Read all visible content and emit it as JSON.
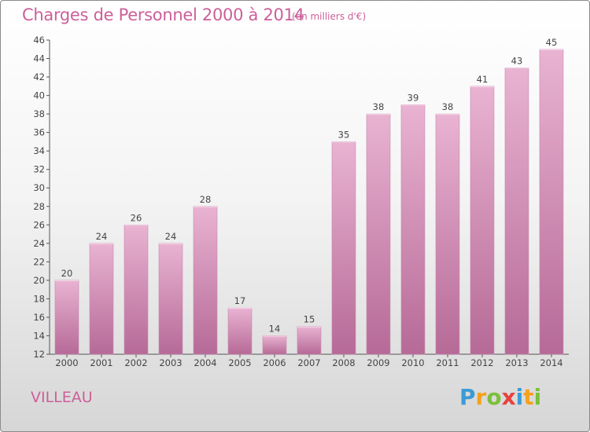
{
  "title": "Charges de Personnel 2000 à 2014",
  "subtitle": "(en milliers d'€)",
  "location": "VILLEAU",
  "logo": {
    "text": "Proxiti",
    "letters": [
      {
        "ch": "P",
        "color": "#3c9bd6"
      },
      {
        "ch": "r",
        "color": "#f4a11c"
      },
      {
        "ch": "o",
        "color": "#7cbf3a"
      },
      {
        "ch": "x",
        "color": "#e8413c"
      },
      {
        "ch": "i",
        "color": "#3c9bd6"
      },
      {
        "ch": "t",
        "color": "#f4a11c"
      },
      {
        "ch": "i",
        "color": "#7cbf3a"
      }
    ]
  },
  "colors": {
    "bar_light": "#e9b3d2",
    "bar_dark": "#b66a97",
    "accent": "#cc5f99"
  },
  "chart_data": {
    "type": "bar",
    "categories": [
      "2000",
      "2001",
      "2002",
      "2003",
      "2004",
      "2005",
      "2006",
      "2007",
      "2008",
      "2009",
      "2010",
      "2011",
      "2012",
      "2013",
      "2014"
    ],
    "values": [
      20,
      24,
      26,
      24,
      28,
      17,
      14,
      15,
      35,
      38,
      39,
      38,
      41,
      43,
      45
    ],
    "ylim": [
      12,
      46
    ],
    "yticks": [
      12,
      14,
      16,
      18,
      20,
      22,
      24,
      26,
      28,
      30,
      32,
      34,
      36,
      38,
      40,
      42,
      44,
      46
    ],
    "grid": false,
    "xlabel": "",
    "ylabel": ""
  }
}
